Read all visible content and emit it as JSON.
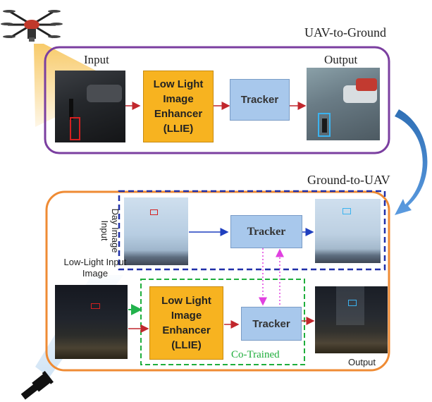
{
  "sections": {
    "uav_to_ground": {
      "title": "UAV-to-Ground",
      "input_label": "Input",
      "output_label": "Output",
      "enhancer_lines": [
        "Low Light",
        "Image",
        "Enhancer",
        "(LLIE)"
      ],
      "tracker_label": "Tracker",
      "border_color": "#7b3fa0"
    },
    "ground_to_uav": {
      "title": "Ground-to-UAV",
      "day_input_label_lines": [
        "Day Image",
        "Input"
      ],
      "low_light_input_label_lines": [
        "Low-Light Input",
        "Image"
      ],
      "tracker_top_label": "Tracker",
      "enhancer_lines": [
        "Low Light",
        "Image",
        "Enhancer",
        "(LLIE)"
      ],
      "tracker_bottom_label": "Tracker",
      "co_trained_label": "Co-Trained",
      "output_label": "Output",
      "border_color": "#ef8b34",
      "day_box_color": "#1f2fa8",
      "co_trained_color": "#1fae3c"
    }
  },
  "colors": {
    "arrow_red": "#c1272d",
    "arrow_blue": "#1f3fbf",
    "arrow_magenta": "#e040e0",
    "arrow_green": "#22b24c",
    "curved_arrow": "#3f78c0"
  },
  "icons": [
    "drone-icon",
    "flashlight-icon"
  ]
}
